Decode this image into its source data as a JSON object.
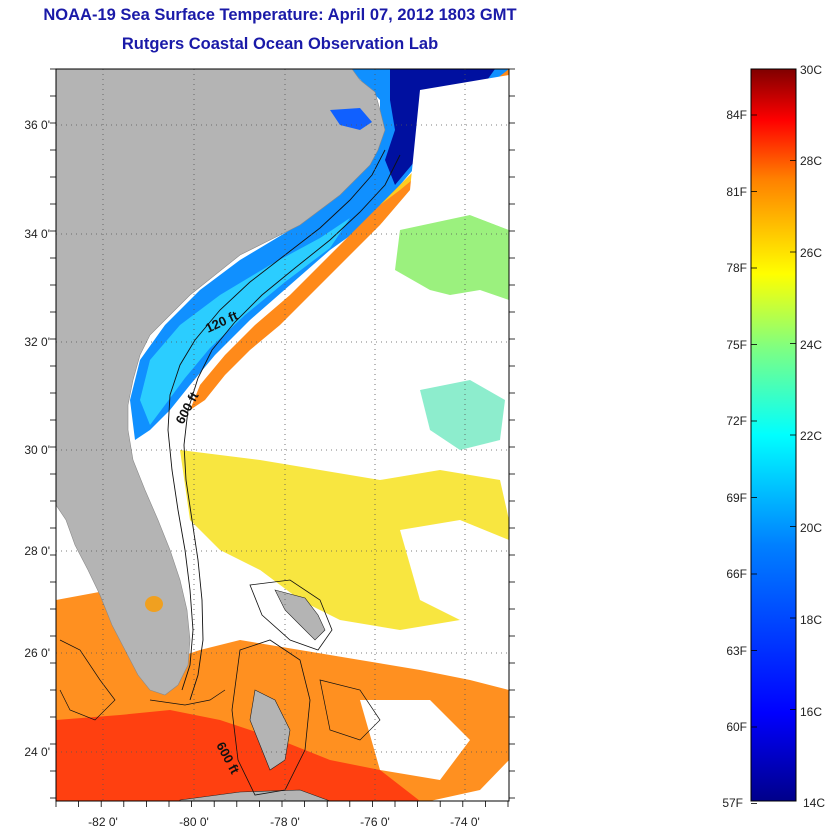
{
  "title": "NOAA-19 Sea Surface Temperature:  April 07, 2012 1803 GMT",
  "subtitle": "Rutgers Coastal Ocean Observation Lab",
  "longitude_labels": [
    "-82 0'",
    "-80 0'",
    "-78 0'",
    "-76 0'",
    "-74 0'"
  ],
  "latitude_labels": [
    "36 0'",
    "34 0'",
    "32 0'",
    "30 0'",
    "28 0'",
    "26 0'",
    "24 0'"
  ],
  "contour_labels": [
    "120 ft",
    "600 ft",
    "600 ft"
  ],
  "colorbar": {
    "celsius_labels": [
      "30C",
      "28C",
      "26C",
      "24C",
      "22C",
      "20C",
      "18C",
      "16C",
      "14C"
    ],
    "fahrenheit_labels": [
      "84F",
      "81F",
      "78F",
      "75F",
      "72F",
      "69F",
      "66F",
      "63F",
      "60F",
      "57F"
    ],
    "colors": [
      "#00008a",
      "#0000ff",
      "#0080ff",
      "#00ffff",
      "#80ff80",
      "#ffff00",
      "#ff8000",
      "#ff0000",
      "#800000"
    ]
  },
  "colors": {
    "land": "#b4b4b4",
    "cloud": "#ffffff",
    "title": "#1a1aa8"
  }
}
